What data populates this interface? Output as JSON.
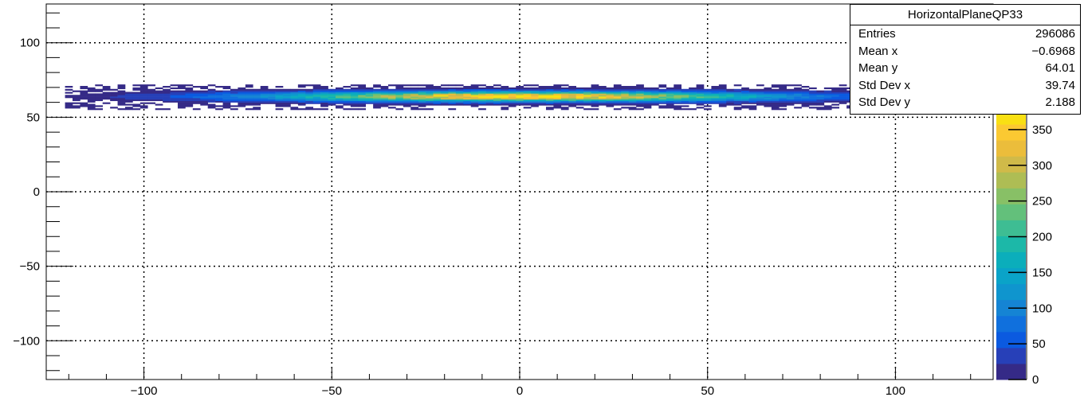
{
  "chart_data": {
    "type": "heatmap",
    "title": "HorizontalPlaneQP33",
    "xlabel": "",
    "ylabel": "",
    "xlim": [
      -126,
      126
    ],
    "ylim": [
      -126,
      126
    ],
    "x_ticks": [
      -100,
      -50,
      0,
      50,
      100
    ],
    "y_ticks": [
      100,
      50,
      0,
      -50,
      -100
    ],
    "grid": true,
    "distribution": {
      "x_mean": -0.6968,
      "x_std": 39.74,
      "y_mean": 64.01,
      "y_std": 2.188,
      "x_extent": [
        -121,
        120
      ],
      "y_extent": [
        55,
        72
      ]
    },
    "colorbar": {
      "min": 0,
      "max": 380,
      "ticks": [
        0,
        50,
        100,
        150,
        200,
        250,
        300,
        350
      ],
      "tick_labels": [
        "0",
        "50",
        "100",
        "150",
        "200",
        "250",
        "300",
        "350"
      ],
      "colors": [
        "#352a87",
        "#2740b8",
        "#0b5ae0",
        "#1070dd",
        "#1584d4",
        "#0f95ce",
        "#0aa3c8",
        "#0baebb",
        "#1cb8a8",
        "#3ebd93",
        "#63c07b",
        "#88c066",
        "#aebd54",
        "#d0ba49",
        "#ebbd3b",
        "#fbc932",
        "#f9e013"
      ]
    }
  },
  "stats": {
    "title": "HorizontalPlaneQP33",
    "rows": [
      {
        "label": "Entries",
        "value": "296086"
      },
      {
        "label": "Mean x",
        "value": "−0.6968"
      },
      {
        "label": "Mean y",
        "value": "64.01"
      },
      {
        "label": "Std Dev x",
        "value": "39.74"
      },
      {
        "label": "Std Dev y",
        "value": "2.188"
      }
    ]
  }
}
